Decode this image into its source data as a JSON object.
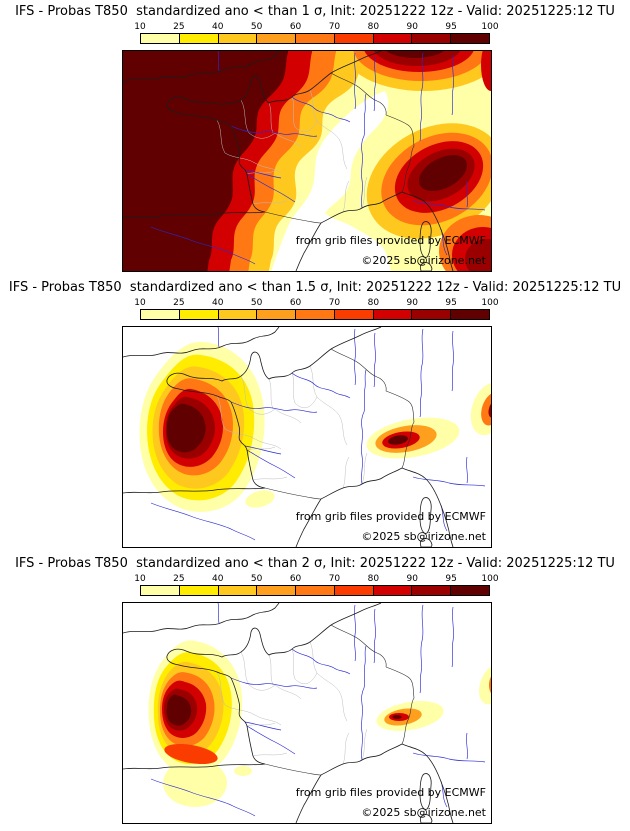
{
  "colorbar": {
    "tick_labels": [
      "10",
      "25",
      "40",
      "50",
      "60",
      "70",
      "80",
      "90",
      "95",
      "100"
    ],
    "segment_colors": [
      "#ffffa8",
      "#ffec00",
      "#ffc81e",
      "#ff9f1e",
      "#ff7814",
      "#fa3c00",
      "#d20000",
      "#9b0000",
      "#600000"
    ]
  },
  "panels": [
    {
      "title": "IFS - Probas T850  standardized ano < than 1 σ, Init: 20251222 12z - Valid: 20251225:12 TU",
      "credit_provider": "from grib files provided by ECMWF",
      "credit_copyright": "©2025 sb@irizone.net"
    },
    {
      "title": "IFS - Probas T850  standardized ano < than 1.5 σ, Init: 20251222 12z - Valid: 20251225:12 TU",
      "credit_provider": "from grib files provided by ECMWF",
      "credit_copyright": "©2025 sb@irizone.net"
    },
    {
      "title": "IFS - Probas T850  standardized ano < than 2 σ, Init: 20251222 12z - Valid: 20251225:12 TU",
      "credit_provider": "from grib files provided by ECMWF",
      "credit_copyright": "©2025 sb@irizone.net"
    }
  ],
  "chart_data": [
    {
      "type": "heatmap",
      "title": "IFS - Probas T850 standardized ano < than 1 σ, Init: 20251222 12z - Valid: 20251225:12 TU",
      "model": "IFS",
      "variable": "Probas T850 standardized ano",
      "threshold_sigma": 1,
      "init": "20251222 12z",
      "valid": "20251225:12 TU",
      "scale_levels": [
        10,
        25,
        40,
        50,
        60,
        70,
        80,
        90,
        95,
        100
      ],
      "legend_position": "top",
      "region": "France / Western Europe",
      "summary": "Probabilities above 95% cover the Atlantic, western and northern France, southern England, Spain and the Alps / north Italy; a narrow low-probability corridor runs from the north-east down the Rhone valley to the Gulf of Lion."
    },
    {
      "type": "heatmap",
      "title": "IFS - Probas T850 standardized ano < than 1.5 σ, Init: 20251222 12z - Valid: 20251225:12 TU",
      "model": "IFS",
      "variable": "Probas T850 standardized ano",
      "threshold_sigma": 1.5,
      "init": "20251222 12z",
      "valid": "20251225:12 TU",
      "scale_levels": [
        10,
        25,
        40,
        50,
        60,
        70,
        80,
        90,
        95,
        100
      ],
      "legend_position": "top",
      "region": "France / Western Europe",
      "summary": "High-probability core (>95%) centred on the Bay of Biscay and south-west France, with secondary maxima over the Ligurian Alps and near the north-eastern map edge."
    },
    {
      "type": "heatmap",
      "title": "IFS - Probas T850 standardized ano < than 2 σ, Init: 20251222 12z - Valid: 20251225:12 TU",
      "model": "IFS",
      "variable": "Probas T850 standardized ano",
      "threshold_sigma": 2,
      "init": "20251222 12z",
      "valid": "20251225:12 TU",
      "scale_levels": [
        10,
        25,
        40,
        50,
        60,
        70,
        80,
        90,
        95,
        100
      ],
      "legend_position": "top",
      "region": "France / Western Europe",
      "summary": "Smaller core above 90% confined to the Bay of Biscay / Aquitaine coast, with a red band along the Cantabrian coast and weak secondary spots over Liguria and the north-eastern map edge."
    }
  ]
}
